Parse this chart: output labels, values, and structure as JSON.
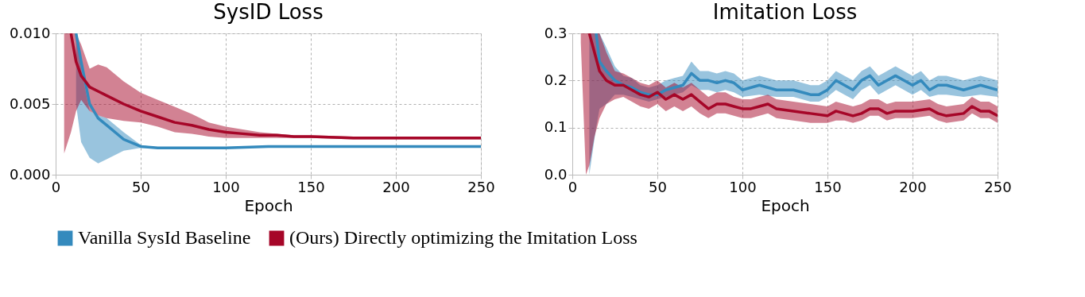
{
  "chart_data": [
    {
      "type": "line",
      "title": "SysID Loss",
      "xlabel": "Epoch",
      "xlim": [
        0,
        250
      ],
      "xticks": [
        0,
        50,
        100,
        150,
        200,
        250
      ],
      "ylim": [
        0,
        0.01
      ],
      "yticks": [
        {
          "value": 0,
          "label": "0.000"
        },
        {
          "value": 0.005,
          "label": "0.005"
        },
        {
          "value": 0.01,
          "label": "0.010"
        }
      ],
      "grid": true,
      "legend": "bottom",
      "line_style": "solid",
      "marker": "none",
      "series": [
        {
          "name": "Vanilla SysId Baseline",
          "color": "#348abd",
          "x": [
            12,
            15,
            20,
            25,
            30,
            40,
            50,
            60,
            80,
            100,
            125,
            150,
            175,
            200,
            225,
            250
          ],
          "values": [
            0.01,
            0.008,
            0.005,
            0.004,
            0.0035,
            0.0025,
            0.002,
            0.0019,
            0.0019,
            0.0019,
            0.002,
            0.002,
            0.002,
            0.002,
            0.002,
            0.002
          ],
          "lower": [
            0.005,
            0.0023,
            0.0012,
            0.0008,
            0.0011,
            0.0017,
            0.0019,
            0.0019,
            0.0019,
            0.0019,
            0.002,
            0.002,
            0.002,
            0.002,
            0.002,
            0.002
          ],
          "upper": [
            0.01,
            0.0075,
            0.0045,
            0.0042,
            0.004,
            0.003,
            0.0021,
            0.0019,
            0.0019,
            0.0019,
            0.002,
            0.002,
            0.002,
            0.002,
            0.002,
            0.002
          ]
        },
        {
          "name": "(Ours) Directly optimizing the Imitation Loss",
          "color": "#a60628",
          "x": [
            5,
            9,
            12,
            15,
            20,
            25,
            30,
            40,
            50,
            60,
            70,
            80,
            90,
            100,
            110,
            120,
            130,
            140,
            150,
            175,
            200,
            225,
            250
          ],
          "values": [
            null,
            0.01,
            0.008,
            0.007,
            0.0062,
            0.0059,
            0.0056,
            0.005,
            0.0045,
            0.0041,
            0.0037,
            0.0035,
            0.0032,
            0.003,
            0.0029,
            0.0028,
            0.0028,
            0.0027,
            0.0027,
            0.0026,
            0.0026,
            0.0026,
            0.0026
          ],
          "lower": [
            0.0015,
            0.003,
            0.0045,
            0.0053,
            0.0045,
            0.0042,
            0.004,
            0.0038,
            0.0037,
            0.0034,
            0.003,
            0.0029,
            0.0027,
            0.0026,
            0.0026,
            0.0026,
            0.0026,
            0.0026,
            0.0026,
            0.0025,
            0.0025,
            0.0025,
            0.0025
          ],
          "upper": [
            0.01,
            0.01,
            0.01,
            0.0092,
            0.0075,
            0.0078,
            0.0076,
            0.0066,
            0.0058,
            0.0053,
            0.0048,
            0.0043,
            0.0037,
            0.0034,
            0.0032,
            0.003,
            0.0029,
            0.0028,
            0.0028,
            0.0027,
            0.0027,
            0.0027,
            0.0027
          ]
        }
      ]
    },
    {
      "type": "line",
      "title": "Imitation Loss",
      "xlabel": "Epoch",
      "xlim": [
        0,
        250
      ],
      "xticks": [
        0,
        50,
        100,
        150,
        200,
        250
      ],
      "ylim": [
        0,
        0.3
      ],
      "yticks": [
        {
          "value": 0,
          "label": "0.0"
        },
        {
          "value": 0.1,
          "label": "0.1"
        },
        {
          "value": 0.2,
          "label": "0.2"
        },
        {
          "value": 0.3,
          "label": "0.3"
        }
      ],
      "grid": true,
      "legend": "bottom",
      "line_style": "solid",
      "marker": "none",
      "series": [
        {
          "name": "Vanilla SysId Baseline",
          "color": "#348abd",
          "x": [
            10,
            14,
            16,
            20,
            25,
            30,
            35,
            40,
            45,
            50,
            55,
            60,
            65,
            70,
            75,
            80,
            85,
            90,
            95,
            100,
            110,
            120,
            130,
            140,
            145,
            150,
            155,
            160,
            165,
            170,
            175,
            180,
            185,
            190,
            195,
            200,
            205,
            210,
            215,
            220,
            230,
            240,
            250
          ],
          "values": [
            null,
            0.3,
            0.24,
            0.22,
            0.2,
            0.19,
            0.185,
            0.175,
            0.17,
            0.17,
            0.18,
            0.185,
            0.19,
            0.215,
            0.2,
            0.2,
            0.195,
            0.2,
            0.195,
            0.18,
            0.19,
            0.18,
            0.18,
            0.17,
            0.17,
            0.18,
            0.2,
            0.19,
            0.18,
            0.2,
            0.21,
            0.19,
            0.2,
            0.21,
            0.2,
            0.19,
            0.2,
            0.18,
            0.19,
            0.19,
            0.18,
            0.19,
            0.18
          ],
          "lower": [
            0.0,
            0.1,
            0.14,
            0.15,
            0.17,
            0.17,
            0.165,
            0.16,
            0.155,
            0.16,
            0.165,
            0.17,
            0.175,
            0.19,
            0.18,
            0.18,
            0.175,
            0.18,
            0.175,
            0.165,
            0.17,
            0.165,
            0.165,
            0.155,
            0.155,
            0.165,
            0.18,
            0.17,
            0.16,
            0.18,
            0.19,
            0.17,
            0.18,
            0.19,
            0.18,
            0.17,
            0.18,
            0.165,
            0.17,
            0.17,
            0.165,
            0.17,
            0.165
          ],
          "upper": [
            0.3,
            0.3,
            0.3,
            0.27,
            0.23,
            0.21,
            0.205,
            0.19,
            0.185,
            0.19,
            0.2,
            0.205,
            0.21,
            0.24,
            0.22,
            0.22,
            0.215,
            0.22,
            0.215,
            0.2,
            0.21,
            0.2,
            0.2,
            0.19,
            0.19,
            0.2,
            0.22,
            0.21,
            0.2,
            0.22,
            0.23,
            0.21,
            0.22,
            0.23,
            0.22,
            0.21,
            0.22,
            0.2,
            0.21,
            0.21,
            0.2,
            0.21,
            0.2
          ]
        },
        {
          "name": "(Ours) Directly optimizing the Imitation Loss",
          "color": "#a60628",
          "x": [
            5,
            8,
            10,
            13,
            16,
            20,
            25,
            30,
            35,
            40,
            45,
            50,
            55,
            60,
            65,
            70,
            75,
            80,
            85,
            90,
            95,
            100,
            105,
            110,
            115,
            120,
            130,
            140,
            150,
            155,
            160,
            165,
            170,
            175,
            180,
            185,
            190,
            200,
            210,
            215,
            220,
            230,
            235,
            240,
            245,
            250
          ],
          "values": [
            null,
            null,
            0.3,
            0.26,
            0.22,
            0.2,
            0.19,
            0.19,
            0.18,
            0.17,
            0.165,
            0.175,
            0.16,
            0.17,
            0.16,
            0.17,
            0.155,
            0.14,
            0.15,
            0.15,
            0.145,
            0.14,
            0.14,
            0.145,
            0.15,
            0.14,
            0.135,
            0.13,
            0.125,
            0.135,
            0.13,
            0.125,
            0.13,
            0.14,
            0.14,
            0.13,
            0.135,
            0.135,
            0.14,
            0.13,
            0.125,
            0.13,
            0.145,
            0.135,
            0.135,
            0.125
          ],
          "lower": [
            0.28,
            0.0,
            0.02,
            0.08,
            0.12,
            0.15,
            0.16,
            0.165,
            0.155,
            0.145,
            0.14,
            0.15,
            0.135,
            0.145,
            0.135,
            0.145,
            0.13,
            0.12,
            0.13,
            0.13,
            0.125,
            0.12,
            0.12,
            0.125,
            0.13,
            0.12,
            0.115,
            0.11,
            0.11,
            0.115,
            0.115,
            0.11,
            0.115,
            0.125,
            0.125,
            0.115,
            0.12,
            0.12,
            0.125,
            0.115,
            0.11,
            0.115,
            0.13,
            0.12,
            0.12,
            0.11
          ],
          "upper": [
            0.3,
            0.3,
            0.3,
            0.3,
            0.3,
            0.26,
            0.22,
            0.215,
            0.205,
            0.195,
            0.19,
            0.2,
            0.185,
            0.195,
            0.185,
            0.195,
            0.18,
            0.165,
            0.175,
            0.175,
            0.165,
            0.16,
            0.16,
            0.165,
            0.17,
            0.16,
            0.155,
            0.15,
            0.145,
            0.155,
            0.15,
            0.145,
            0.15,
            0.16,
            0.16,
            0.15,
            0.155,
            0.155,
            0.16,
            0.15,
            0.145,
            0.15,
            0.165,
            0.155,
            0.155,
            0.145
          ]
        }
      ]
    }
  ]
}
